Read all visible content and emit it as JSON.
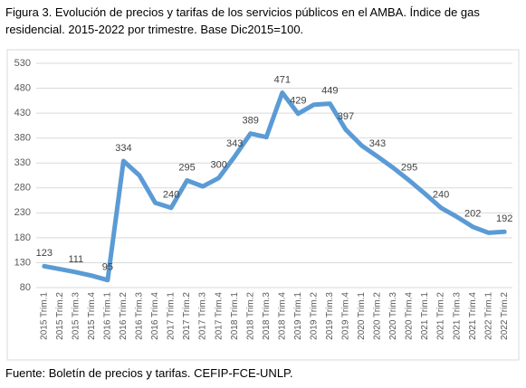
{
  "chart_data": {
    "type": "line",
    "title": "Figura 3. Evolución de precios y tarifas de los servicios públicos en el AMBA. Índice de gas residencial. 2015-2022 por trimestre. Base Dic2015=100.",
    "source": "Fuente: Boletín de precios y tarifas. CEFIP-FCE-UNLP.",
    "categories": [
      "2015 Trim.1",
      "2015 Trim.2",
      "2015 Trim.3",
      "2015 Trim.4",
      "2016 Trim.1",
      "2016 Trim.2",
      "2016 Trim.3",
      "2016 Trim.4",
      "2017 Trim.1",
      "2017 Trim.2",
      "2017 Trim.3",
      "2017 Trim.4",
      "2018 Trim.1",
      "2018 Trim.2",
      "2018 Trim.3",
      "2018 Trim.4",
      "2019 Trim.1",
      "2019 Trim.2",
      "2019 Trim.3",
      "2019 Trim.4",
      "2020 Trim.1",
      "2020 Trim.2",
      "2020 Trim.3",
      "2020 Trim.4",
      "2021 Trim.1",
      "2021 Trim.2",
      "2021 Trim.3",
      "2021 Trim.4",
      "2022 Trim.1",
      "2022 Trim.2"
    ],
    "values": [
      123,
      117,
      111,
      104,
      95,
      334,
      305,
      250,
      240,
      295,
      283,
      300,
      343,
      389,
      382,
      471,
      429,
      447,
      449,
      397,
      365,
      343,
      320,
      295,
      268,
      240,
      222,
      202,
      190,
      192
    ],
    "value_labels": [
      "123",
      null,
      "111",
      null,
      "95",
      "334",
      null,
      null,
      "240",
      "295",
      null,
      "300",
      "343",
      "389",
      null,
      "471",
      "429",
      null,
      "449",
      "397",
      null,
      "343",
      null,
      "295",
      null,
      "240",
      null,
      "202",
      null,
      "192"
    ],
    "color": "#5b9bd5",
    "ylim": [
      80,
      530
    ],
    "yticks": [
      80,
      130,
      180,
      230,
      280,
      330,
      380,
      430,
      480,
      530
    ],
    "grid": true
  }
}
